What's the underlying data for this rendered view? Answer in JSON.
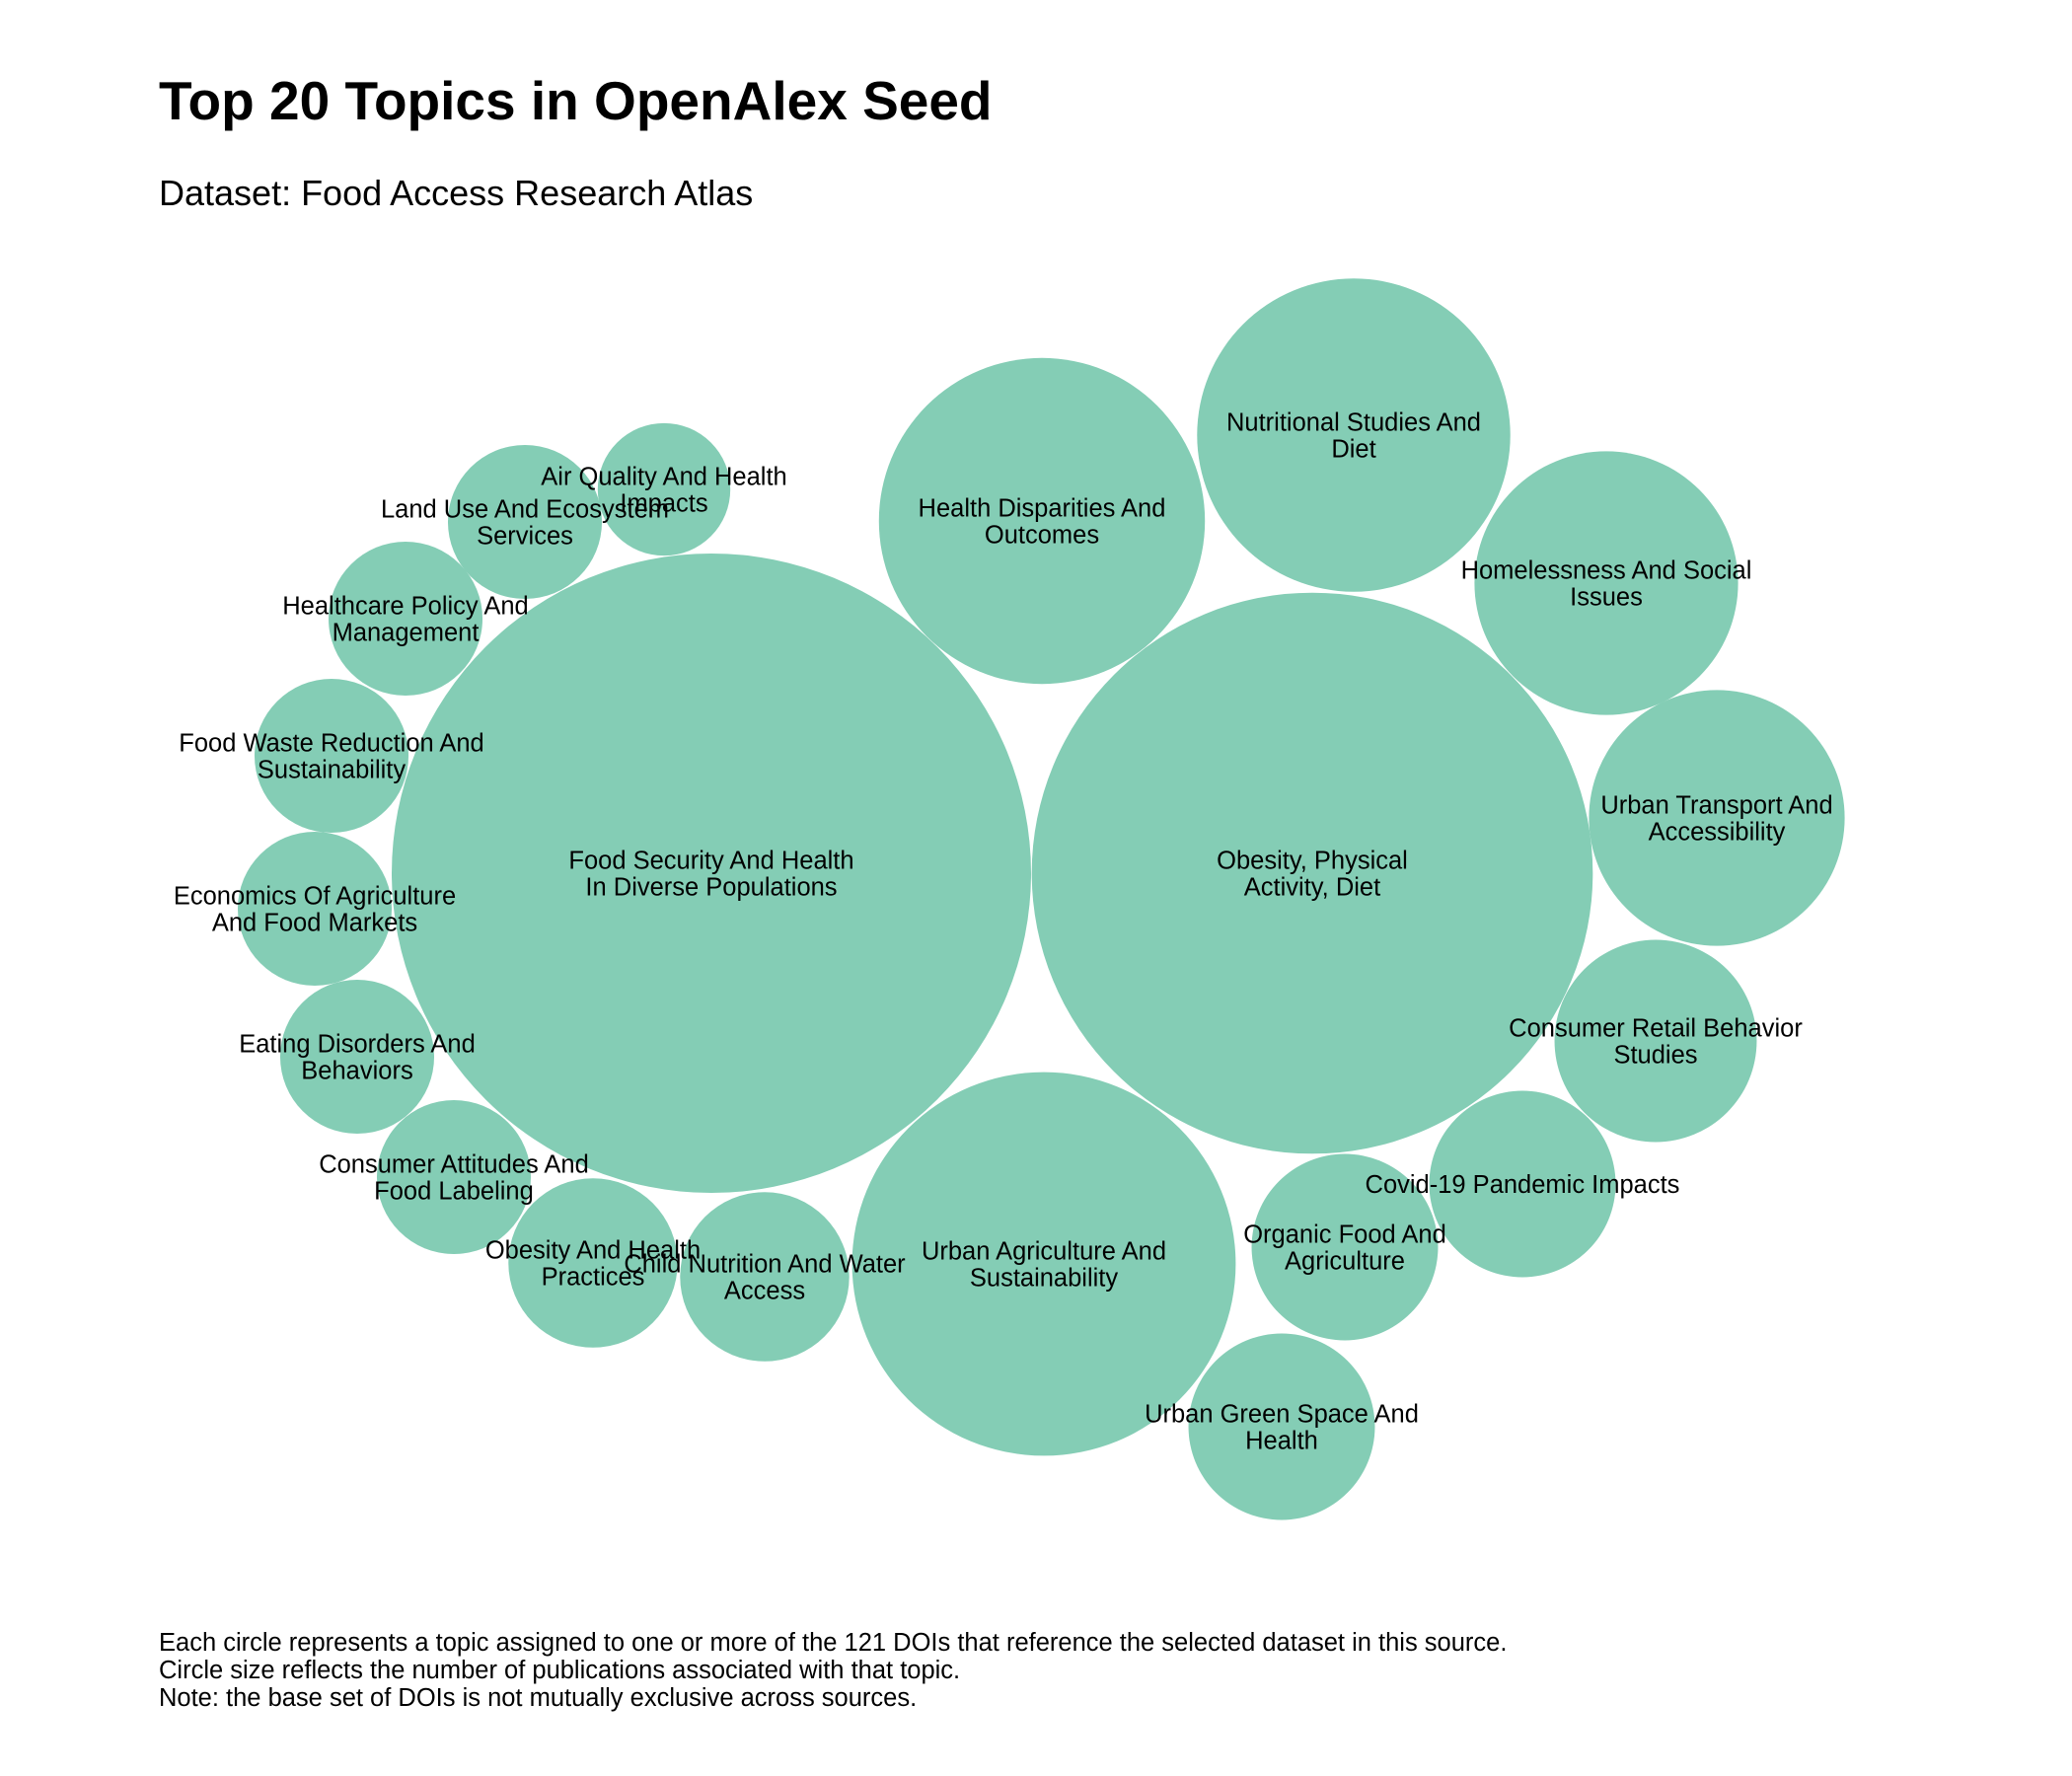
{
  "title": "Top 20 Topics in OpenAlex Seed",
  "subtitle": "Dataset: Food Access Research Atlas",
  "notes": [
    "Each circle represents a topic assigned to one or more of the 121 DOIs that reference the selected dataset in this source.",
    "Circle size reflects the number of publications associated with that topic.",
    "Note: the base set of DOIs is not mutually exclusive across sources."
  ],
  "colors": {
    "bubble": "#84cdb5"
  },
  "chart_data": {
    "type": "bubble",
    "size_encoding": "number of publications associated with topic (relative, estimated)",
    "bubbles": [
      {
        "label": "Food Security And Health In Diverse Populations",
        "lines": [
          "Food Security And Health",
          "In Diverse Populations"
        ],
        "value": 100
      },
      {
        "label": "Obesity, Physical Activity, Diet",
        "lines": [
          "Obesity, Physical",
          "Activity, Diet"
        ],
        "value": 77
      },
      {
        "label": "Urban Agriculture And Sustainability",
        "lines": [
          "Urban Agriculture And",
          "Sustainability"
        ],
        "value": 36
      },
      {
        "label": "Health Disparities And Outcomes",
        "lines": [
          "Health Disparities And",
          "Outcomes"
        ],
        "value": 26
      },
      {
        "label": "Nutritional Studies And Diet",
        "lines": [
          "Nutritional Studies And",
          "Diet"
        ],
        "value": 24
      },
      {
        "label": "Homelessness And Social Issues",
        "lines": [
          "Homelessness And Social",
          "Issues"
        ],
        "value": 17
      },
      {
        "label": "Urban Transport And Accessibility",
        "lines": [
          "Urban Transport And",
          "Accessibility"
        ],
        "value": 16
      },
      {
        "label": "Consumer Retail Behavior Studies",
        "lines": [
          "Consumer Retail Behavior",
          "Studies"
        ],
        "value": 10
      },
      {
        "label": "Covid-19 Pandemic Impacts",
        "lines": [
          "Covid-19 Pandemic Impacts"
        ],
        "value": 8.5
      },
      {
        "label": "Organic Food And Agriculture",
        "lines": [
          "Organic Food And",
          "Agriculture"
        ],
        "value": 8.5
      },
      {
        "label": "Urban Green Space And Health",
        "lines": [
          "Urban Green Space And",
          "Health"
        ],
        "value": 8.5
      },
      {
        "label": "Child Nutrition And Water Access",
        "lines": [
          "Child Nutrition And Water",
          "Access"
        ],
        "value": 7
      },
      {
        "label": "Obesity And Health Practices",
        "lines": [
          "Obesity And Health",
          "Practices"
        ],
        "value": 7
      },
      {
        "label": "Consumer Attitudes And Food Labeling",
        "lines": [
          "Consumer Attitudes And",
          "Food Labeling"
        ],
        "value": 5.8
      },
      {
        "label": "Eating Disorders And Behaviors",
        "lines": [
          "Eating Disorders And",
          "Behaviors"
        ],
        "value": 5.8
      },
      {
        "label": "Economics Of Agriculture And Food Markets",
        "lines": [
          "Economics Of Agriculture",
          "And Food Markets"
        ],
        "value": 5.8
      },
      {
        "label": "Food Waste Reduction And Sustainability",
        "lines": [
          "Food Waste Reduction And",
          "Sustainability"
        ],
        "value": 5.8
      },
      {
        "label": "Healthcare Policy And Management",
        "lines": [
          "Healthcare Policy And",
          "Management"
        ],
        "value": 5.8
      },
      {
        "label": "Land Use And Ecosystem Services",
        "lines": [
          "Land Use And Ecosystem",
          "Services"
        ],
        "value": 5.8
      },
      {
        "label": "Air Quality And Health Impacts",
        "lines": [
          "Air Quality And Health",
          "Impacts"
        ],
        "value": 4.3
      }
    ]
  }
}
